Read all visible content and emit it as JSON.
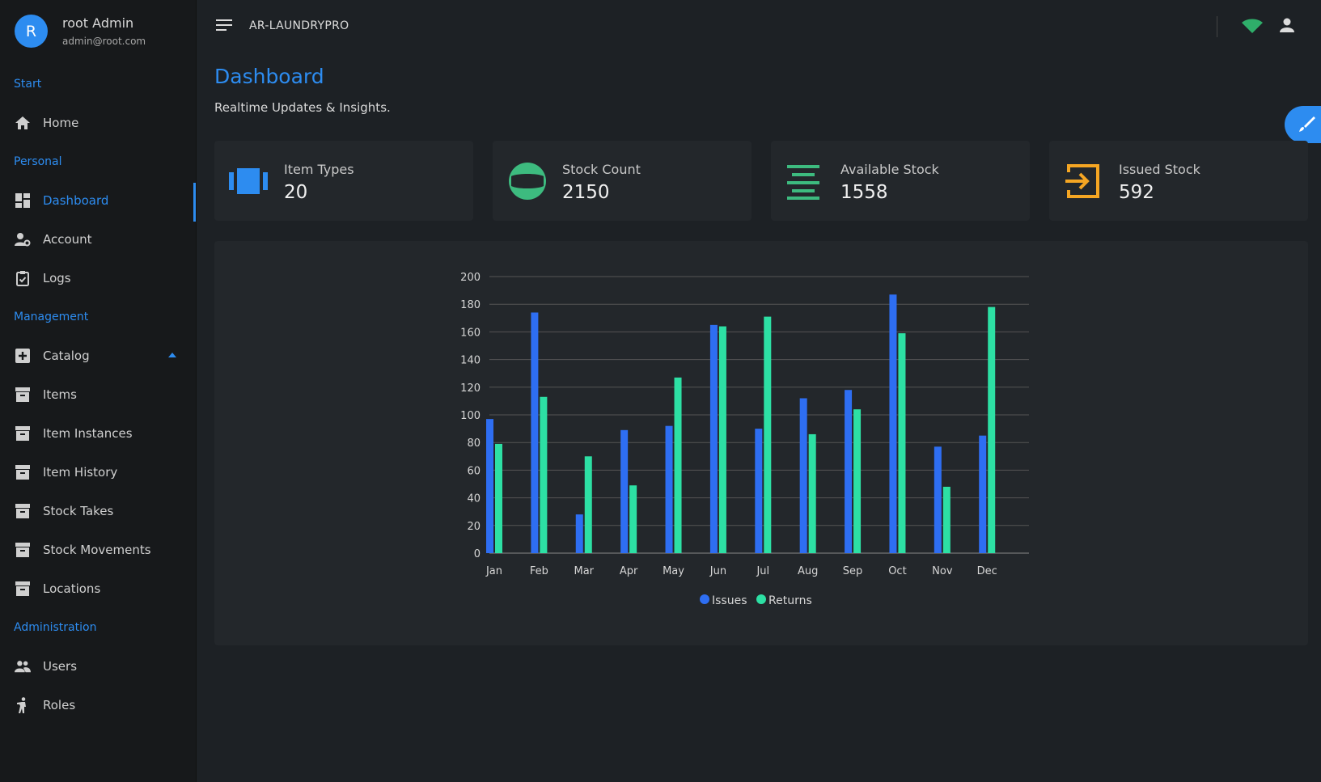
{
  "profile": {
    "initial": "R",
    "name": "root Admin",
    "email": "admin@root.com"
  },
  "nav": {
    "sections": {
      "start": "Start",
      "personal": "Personal",
      "management": "Management",
      "administration": "Administration"
    },
    "items": {
      "home": "Home",
      "dashboard": "Dashboard",
      "account": "Account",
      "logs": "Logs",
      "catalog": "Catalog",
      "items": "Items",
      "item_instances": "Item Instances",
      "item_history": "Item History",
      "stock_takes": "Stock Takes",
      "stock_movements": "Stock Movements",
      "locations": "Locations",
      "users": "Users",
      "roles": "Roles"
    },
    "active": "dashboard"
  },
  "topbar": {
    "brand": "AR-LAUNDRYPRO",
    "icons": [
      "menu-icon",
      "wifi-icon",
      "user-icon"
    ]
  },
  "page": {
    "title": "Dashboard",
    "subtitle": "Realtime Updates & Insights."
  },
  "cards": [
    {
      "label": "Item Types",
      "value": "20",
      "icon": "item-types-icon",
      "color": "#2d8cf0"
    },
    {
      "label": "Stock Count",
      "value": "2150",
      "icon": "stock-count-icon",
      "color": "#3dbb7f"
    },
    {
      "label": "Available Stock",
      "value": "1558",
      "icon": "available-stock-icon",
      "color": "#3dbb7f"
    },
    {
      "label": "Issued Stock",
      "value": "592",
      "icon": "issued-stock-icon",
      "color": "#f5a623"
    }
  ],
  "colors": {
    "accent": "#2d8cf0",
    "issues": "#2e6ef2",
    "returns": "#2de0a4"
  },
  "chart_data": {
    "type": "bar",
    "categories": [
      "Jan",
      "Feb",
      "Mar",
      "Apr",
      "May",
      "Jun",
      "Jul",
      "Aug",
      "Sep",
      "Oct",
      "Nov",
      "Dec"
    ],
    "series": [
      {
        "name": "Issues",
        "values": [
          97,
          174,
          28,
          89,
          92,
          165,
          90,
          112,
          118,
          187,
          77,
          85
        ]
      },
      {
        "name": "Returns",
        "values": [
          79,
          113,
          70,
          49,
          127,
          164,
          171,
          86,
          104,
          159,
          48,
          178
        ]
      }
    ],
    "yticks": [
      "0",
      "20",
      "40",
      "60",
      "80",
      "100",
      "120",
      "140",
      "160",
      "180",
      "200"
    ],
    "ylim": [
      0,
      200
    ],
    "grid": true,
    "legend": "bottom-center"
  }
}
